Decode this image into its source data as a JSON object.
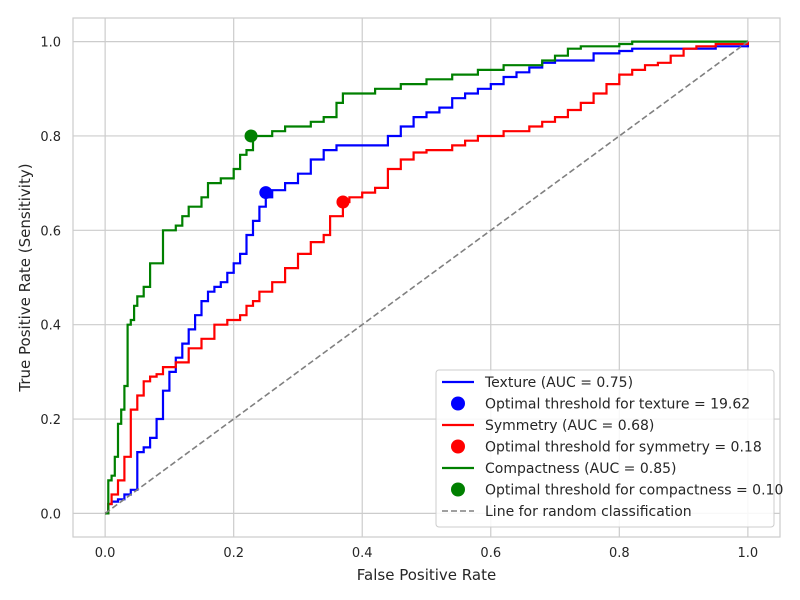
{
  "chart_data": {
    "type": "line",
    "xlabel": "False Positive Rate",
    "ylabel": "True Positive Rate (Sensitivity)",
    "xlim": [
      -0.05,
      1.05
    ],
    "ylim": [
      -0.05,
      1.05
    ],
    "xticks": [
      "0.0",
      "0.2",
      "0.4",
      "0.6",
      "0.8",
      "1.0"
    ],
    "yticks": [
      "0.0",
      "0.2",
      "0.4",
      "0.6",
      "0.8",
      "1.0"
    ],
    "grid": true,
    "legend_position": "lower-right",
    "series": [
      {
        "name": "Texture (AUC = 0.75)",
        "color": "#0000ff",
        "points": [
          [
            0,
            0
          ],
          [
            0.005,
            0.02
          ],
          [
            0.01,
            0.025
          ],
          [
            0.02,
            0.03
          ],
          [
            0.03,
            0.04
          ],
          [
            0.04,
            0.05
          ],
          [
            0.05,
            0.13
          ],
          [
            0.06,
            0.14
          ],
          [
            0.07,
            0.16
          ],
          [
            0.08,
            0.2
          ],
          [
            0.09,
            0.26
          ],
          [
            0.1,
            0.3
          ],
          [
            0.11,
            0.33
          ],
          [
            0.12,
            0.36
          ],
          [
            0.13,
            0.39
          ],
          [
            0.14,
            0.42
          ],
          [
            0.15,
            0.45
          ],
          [
            0.16,
            0.47
          ],
          [
            0.17,
            0.48
          ],
          [
            0.18,
            0.49
          ],
          [
            0.19,
            0.51
          ],
          [
            0.2,
            0.53
          ],
          [
            0.21,
            0.55
          ],
          [
            0.22,
            0.59
          ],
          [
            0.23,
            0.62
          ],
          [
            0.24,
            0.65
          ],
          [
            0.25,
            0.67
          ],
          [
            0.26,
            0.685
          ],
          [
            0.28,
            0.7
          ],
          [
            0.3,
            0.72
          ],
          [
            0.32,
            0.75
          ],
          [
            0.34,
            0.77
          ],
          [
            0.36,
            0.78
          ],
          [
            0.43,
            0.78
          ],
          [
            0.44,
            0.8
          ],
          [
            0.46,
            0.82
          ],
          [
            0.48,
            0.84
          ],
          [
            0.5,
            0.85
          ],
          [
            0.52,
            0.86
          ],
          [
            0.54,
            0.88
          ],
          [
            0.56,
            0.89
          ],
          [
            0.58,
            0.9
          ],
          [
            0.6,
            0.91
          ],
          [
            0.62,
            0.925
          ],
          [
            0.64,
            0.935
          ],
          [
            0.66,
            0.945
          ],
          [
            0.68,
            0.955
          ],
          [
            0.7,
            0.96
          ],
          [
            0.74,
            0.96
          ],
          [
            0.76,
            0.975
          ],
          [
            0.8,
            0.98
          ],
          [
            0.82,
            0.985
          ],
          [
            0.9,
            0.985
          ],
          [
            0.95,
            0.99
          ],
          [
            1,
            1
          ]
        ]
      },
      {
        "name": "Symmetry (AUC = 0.68)",
        "color": "#ff0000",
        "points": [
          [
            0,
            0
          ],
          [
            0.005,
            0.02
          ],
          [
            0.01,
            0.04
          ],
          [
            0.02,
            0.07
          ],
          [
            0.03,
            0.12
          ],
          [
            0.04,
            0.22
          ],
          [
            0.05,
            0.25
          ],
          [
            0.06,
            0.28
          ],
          [
            0.07,
            0.29
          ],
          [
            0.08,
            0.295
          ],
          [
            0.09,
            0.31
          ],
          [
            0.11,
            0.32
          ],
          [
            0.13,
            0.35
          ],
          [
            0.15,
            0.37
          ],
          [
            0.17,
            0.4
          ],
          [
            0.19,
            0.41
          ],
          [
            0.21,
            0.42
          ],
          [
            0.22,
            0.44
          ],
          [
            0.23,
            0.45
          ],
          [
            0.24,
            0.47
          ],
          [
            0.26,
            0.49
          ],
          [
            0.28,
            0.52
          ],
          [
            0.3,
            0.55
          ],
          [
            0.32,
            0.575
          ],
          [
            0.34,
            0.59
          ],
          [
            0.35,
            0.63
          ],
          [
            0.37,
            0.66
          ],
          [
            0.38,
            0.67
          ],
          [
            0.4,
            0.68
          ],
          [
            0.42,
            0.69
          ],
          [
            0.44,
            0.73
          ],
          [
            0.46,
            0.75
          ],
          [
            0.48,
            0.765
          ],
          [
            0.5,
            0.77
          ],
          [
            0.54,
            0.78
          ],
          [
            0.56,
            0.79
          ],
          [
            0.58,
            0.8
          ],
          [
            0.62,
            0.81
          ],
          [
            0.66,
            0.82
          ],
          [
            0.68,
            0.83
          ],
          [
            0.7,
            0.84
          ],
          [
            0.72,
            0.855
          ],
          [
            0.74,
            0.87
          ],
          [
            0.76,
            0.89
          ],
          [
            0.78,
            0.91
          ],
          [
            0.8,
            0.93
          ],
          [
            0.82,
            0.94
          ],
          [
            0.84,
            0.95
          ],
          [
            0.86,
            0.955
          ],
          [
            0.88,
            0.97
          ],
          [
            0.9,
            0.985
          ],
          [
            0.92,
            0.99
          ],
          [
            0.95,
            0.995
          ],
          [
            1,
            1
          ]
        ]
      },
      {
        "name": "Compactness (AUC = 0.85)",
        "color": "#008000",
        "points": [
          [
            0,
            0
          ],
          [
            0.005,
            0.07
          ],
          [
            0.01,
            0.08
          ],
          [
            0.015,
            0.12
          ],
          [
            0.02,
            0.19
          ],
          [
            0.025,
            0.22
          ],
          [
            0.03,
            0.27
          ],
          [
            0.035,
            0.4
          ],
          [
            0.04,
            0.41
          ],
          [
            0.045,
            0.44
          ],
          [
            0.05,
            0.46
          ],
          [
            0.06,
            0.48
          ],
          [
            0.07,
            0.53
          ],
          [
            0.09,
            0.6
          ],
          [
            0.11,
            0.61
          ],
          [
            0.12,
            0.63
          ],
          [
            0.13,
            0.65
          ],
          [
            0.15,
            0.67
          ],
          [
            0.16,
            0.7
          ],
          [
            0.18,
            0.71
          ],
          [
            0.2,
            0.73
          ],
          [
            0.21,
            0.76
          ],
          [
            0.22,
            0.77
          ],
          [
            0.23,
            0.8
          ],
          [
            0.26,
            0.81
          ],
          [
            0.28,
            0.82
          ],
          [
            0.32,
            0.83
          ],
          [
            0.34,
            0.84
          ],
          [
            0.36,
            0.87
          ],
          [
            0.37,
            0.89
          ],
          [
            0.4,
            0.89
          ],
          [
            0.42,
            0.9
          ],
          [
            0.46,
            0.91
          ],
          [
            0.5,
            0.92
          ],
          [
            0.54,
            0.93
          ],
          [
            0.58,
            0.94
          ],
          [
            0.62,
            0.95
          ],
          [
            0.68,
            0.96
          ],
          [
            0.7,
            0.97
          ],
          [
            0.72,
            0.985
          ],
          [
            0.74,
            0.99
          ],
          [
            0.8,
            0.995
          ],
          [
            0.82,
            1.0
          ],
          [
            1,
            1
          ]
        ]
      },
      {
        "name": "Line for random classification",
        "color": "#808080",
        "dashed": true,
        "points": [
          [
            0,
            0
          ],
          [
            1,
            1
          ]
        ]
      }
    ],
    "optimal_points": [
      {
        "name": "Optimal threshold for texture = 19.62",
        "color": "#0000ff",
        "x": 0.25,
        "y": 0.68
      },
      {
        "name": "Optimal threshold for symmetry = 0.18",
        "color": "#ff0000",
        "x": 0.37,
        "y": 0.66
      },
      {
        "name": "Optimal threshold for compactness = 0.10",
        "color": "#008000",
        "x": 0.227,
        "y": 0.8
      }
    ],
    "legend": [
      {
        "kind": "line",
        "label": "Texture (AUC = 0.75)",
        "color": "#0000ff"
      },
      {
        "kind": "dot",
        "label": "Optimal threshold for texture = 19.62",
        "color": "#0000ff"
      },
      {
        "kind": "line",
        "label": "Symmetry (AUC = 0.68)",
        "color": "#ff0000"
      },
      {
        "kind": "dot",
        "label": "Optimal threshold for symmetry = 0.18",
        "color": "#ff0000"
      },
      {
        "kind": "line",
        "label": "Compactness (AUC = 0.85)",
        "color": "#008000"
      },
      {
        "kind": "dot",
        "label": "Optimal threshold for compactness = 0.10",
        "color": "#008000"
      },
      {
        "kind": "dashed",
        "label": "Line for random classification",
        "color": "#808080"
      }
    ]
  }
}
